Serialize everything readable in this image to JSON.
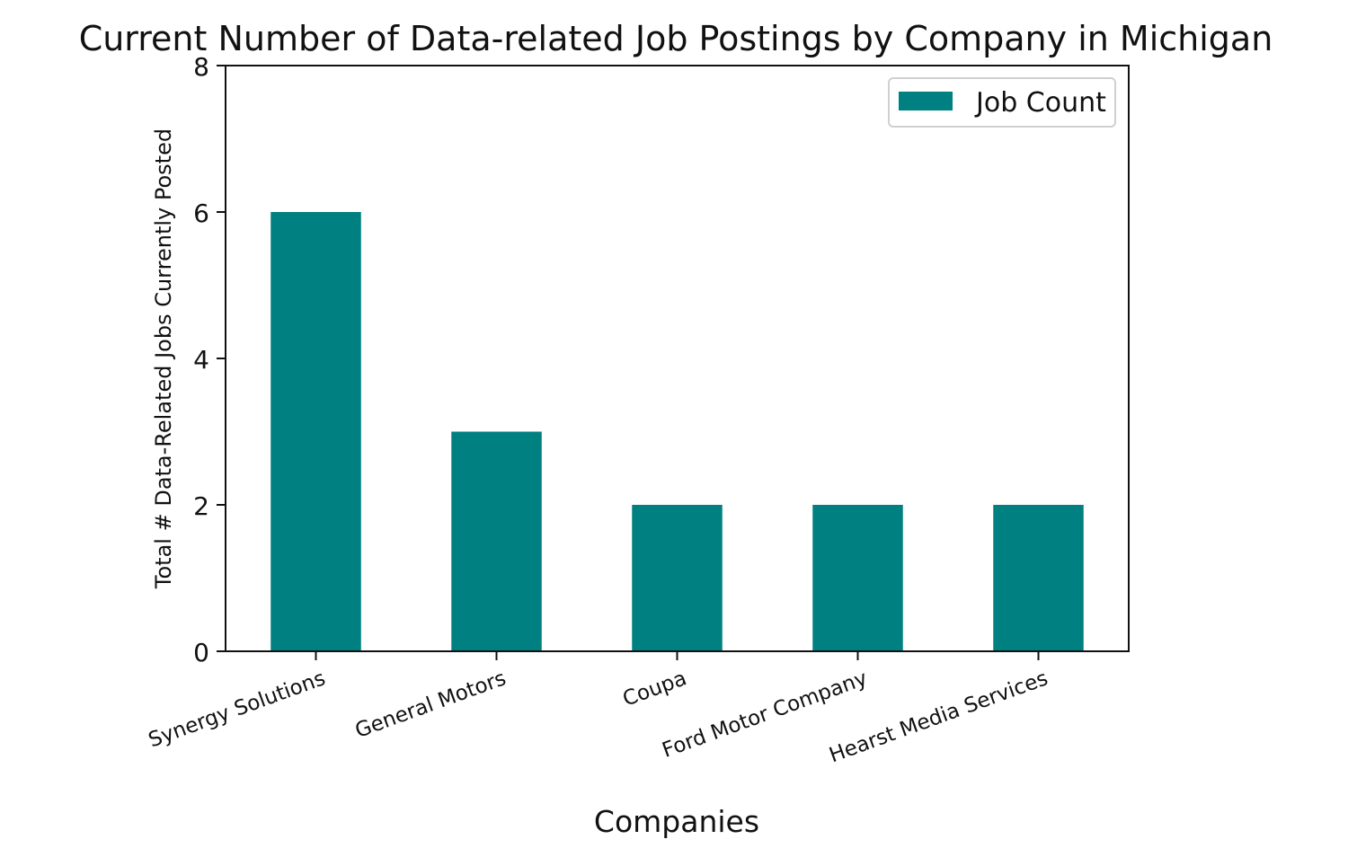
{
  "chart_data": {
    "type": "bar",
    "title": "Current Number of Data-related Job Postings by Company in Michigan",
    "xlabel": "Companies",
    "ylabel": "Total # Data-Related Jobs Currently Posted",
    "categories": [
      "Synergy Solutions",
      "General Motors",
      "Coupa",
      "Ford Motor Company",
      "Hearst Media Services"
    ],
    "series": [
      {
        "name": "Job Count",
        "values": [
          6,
          3,
          2,
          2,
          2
        ],
        "color": "#008080"
      }
    ],
    "ylim": [
      0,
      8
    ],
    "yticks": [
      0,
      2,
      4,
      6,
      8
    ],
    "legend_position": "top-right",
    "grid": false
  }
}
